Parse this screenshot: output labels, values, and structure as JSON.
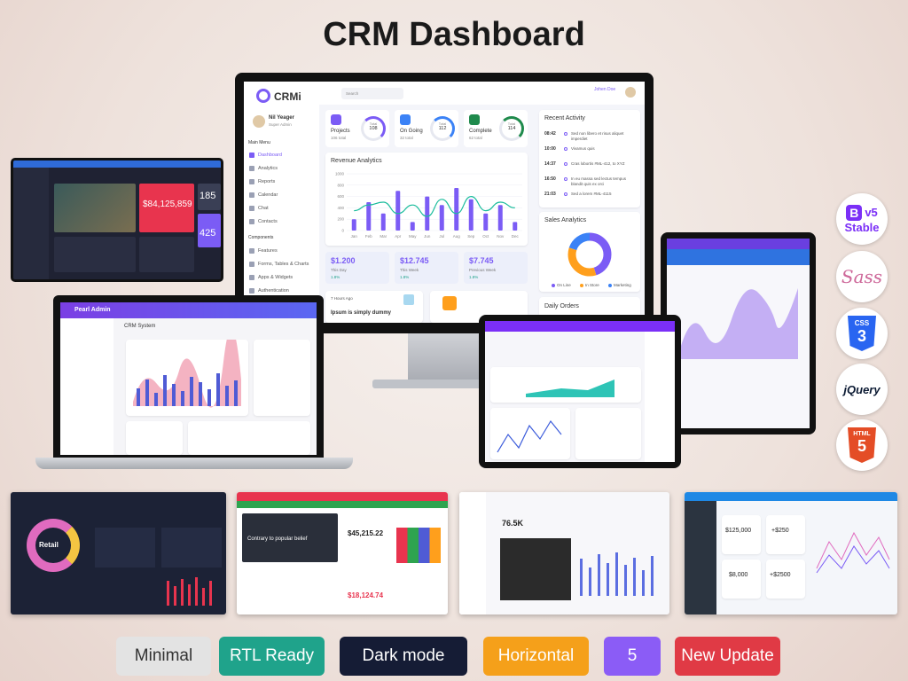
{
  "title": "CRM Dashboard",
  "main_dashboard": {
    "brand": "CRMi",
    "search": "Search",
    "header_user": "Johen Doe",
    "user": {
      "name": "Nil Yeager",
      "role": "Super Admin"
    },
    "menu_heading": "Main Menu",
    "menu": [
      "Dashboard",
      "Analytics",
      "Reports",
      "Calendar",
      "Chat",
      "Contacts"
    ],
    "components_heading": "Components",
    "components": [
      "Features",
      "Forms, Tables & Charts",
      "Apps & Widgets",
      "Authentication"
    ],
    "stats": [
      {
        "label": "Projects",
        "sub": "106 total",
        "ring_label": "Total",
        "ring_value": "108"
      },
      {
        "label": "On Going",
        "sub": "32 total",
        "ring_label": "Total",
        "ring_value": "112"
      },
      {
        "label": "Complete",
        "sub": "62 total",
        "ring_label": "Total",
        "ring_value": "114"
      }
    ],
    "revenue": {
      "title": "Revenue Analytics",
      "categories": [
        "Jan",
        "Feb",
        "Mar",
        "Apr",
        "May",
        "Jun",
        "Jul",
        "Aug",
        "Sep",
        "Oct",
        "Nov",
        "Dec"
      ],
      "ylim": [
        0,
        1000
      ],
      "yticks": [
        0,
        200,
        400,
        600,
        800,
        1000
      ],
      "series": [
        {
          "type": "bar",
          "color": "#7b5cf5",
          "values": [
            200,
            500,
            300,
            700,
            150,
            600,
            450,
            750,
            550,
            300,
            450,
            150
          ]
        },
        {
          "type": "line",
          "color": "#1abc9c",
          "values": [
            350,
            450,
            500,
            300,
            450,
            250,
            550,
            300,
            600,
            350,
            500,
            400
          ]
        }
      ]
    },
    "summary": [
      {
        "value": "$1.200",
        "label": "This Day",
        "change": "1.8%"
      },
      {
        "value": "$12.745",
        "label": "This Week",
        "change": "1.8%"
      },
      {
        "value": "$7.745",
        "label": "Previous Week",
        "change": "1.8%"
      }
    ],
    "activity": {
      "title": "Recent Activity",
      "items": [
        {
          "time": "08:42",
          "text": "Sed non libero et risus aliquet imperdiet"
        },
        {
          "time": "10:00",
          "text": "Vivamus quis"
        },
        {
          "time": "14:37",
          "text": "Cras lobortis #ML-412, to XYZ"
        },
        {
          "time": "16:50",
          "text": "In eu massa sed lectus tempus blandit quis ex orci"
        },
        {
          "time": "21:03",
          "text": "Sed a lorem #ML-4115"
        }
      ]
    },
    "sales": {
      "title": "Sales Analytics",
      "categories": [
        "On Line",
        "In Store",
        "Marketing"
      ],
      "values": [
        45,
        35,
        20
      ],
      "colors": [
        "#7b5cf5",
        "#ff9f1c",
        "#3b82f6"
      ]
    },
    "time_ago": "7 Hours Ago",
    "note": "Ipsum is simply dummy",
    "daily_orders": "Daily Orders"
  },
  "laptop": {
    "brand": "Pearl Admin",
    "title": "CRM System"
  },
  "left_tablet": {
    "amount": "$84,125,859",
    "stat_a": "185",
    "stat_b": "425"
  },
  "thumbnails": {
    "retail": "Retail",
    "banner": "Contrary to popular belief",
    "amount_a": "$45,215.22",
    "amount_b": "$18,124.74",
    "kpi": "76.5K",
    "price_a": "$125,000",
    "price_b": "+$250",
    "price_c": "$8,000",
    "price_d": "+$2500"
  },
  "tech": {
    "bootstrap_logo": "B",
    "bootstrap_version": "v5",
    "bootstrap_status": "Stable",
    "sass": "Sass",
    "css": "CSS",
    "css_version": "3",
    "jquery": "jQuery",
    "html": "HTML",
    "html_version": "5"
  },
  "badges": [
    "Minimal",
    "RTL Ready",
    "Dark mode",
    "Horizontal",
    "5",
    "New Update"
  ]
}
